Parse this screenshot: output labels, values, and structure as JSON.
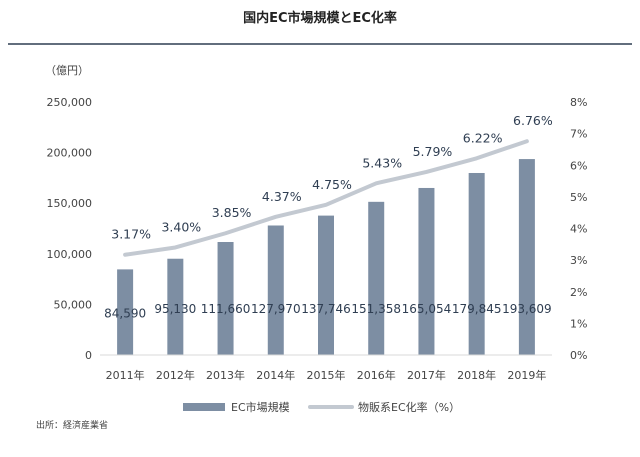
{
  "chart_data": {
    "type": "bar",
    "title": "国内EC市場規模とEC化率",
    "y_unit_label": "（億円）",
    "categories": [
      "2011年",
      "2012年",
      "2013年",
      "2014年",
      "2015年",
      "2016年",
      "2017年",
      "2018年",
      "2019年"
    ],
    "series": [
      {
        "name": "EC市場規模",
        "type": "bar",
        "axis": "left",
        "values": [
          84590,
          95130,
          111660,
          127970,
          137746,
          151358,
          165054,
          179845,
          193609
        ],
        "labels": [
          "84,590",
          "95,130",
          "111,660",
          "127,970",
          "137,746",
          "151,358",
          "165,054",
          "179,845",
          "193,609"
        ],
        "color": "#7d8ea3"
      },
      {
        "name": "物販系EC化率（%）",
        "type": "line",
        "axis": "right",
        "values": [
          3.17,
          3.4,
          3.85,
          4.37,
          4.75,
          5.43,
          5.79,
          6.22,
          6.76
        ],
        "labels": [
          "3.17%",
          "3.40%",
          "3.85%",
          "4.37%",
          "4.75%",
          "5.43%",
          "5.79%",
          "6.22%",
          "6.76%"
        ],
        "color": "#c3c9d1"
      }
    ],
    "ylim_left": [
      0,
      250000
    ],
    "yticks_left": [
      "0",
      "50,000",
      "100,000",
      "150,000",
      "200,000",
      "250,000"
    ],
    "ylim_right": [
      0,
      8
    ],
    "yticks_right": [
      "0%",
      "1%",
      "2%",
      "3%",
      "4%",
      "5%",
      "6%",
      "7%",
      "8%"
    ],
    "grid": false,
    "legend_position": "bottom"
  },
  "source": "出所：経済産業省",
  "colors": {
    "title_rule": "#2f3e52"
  }
}
